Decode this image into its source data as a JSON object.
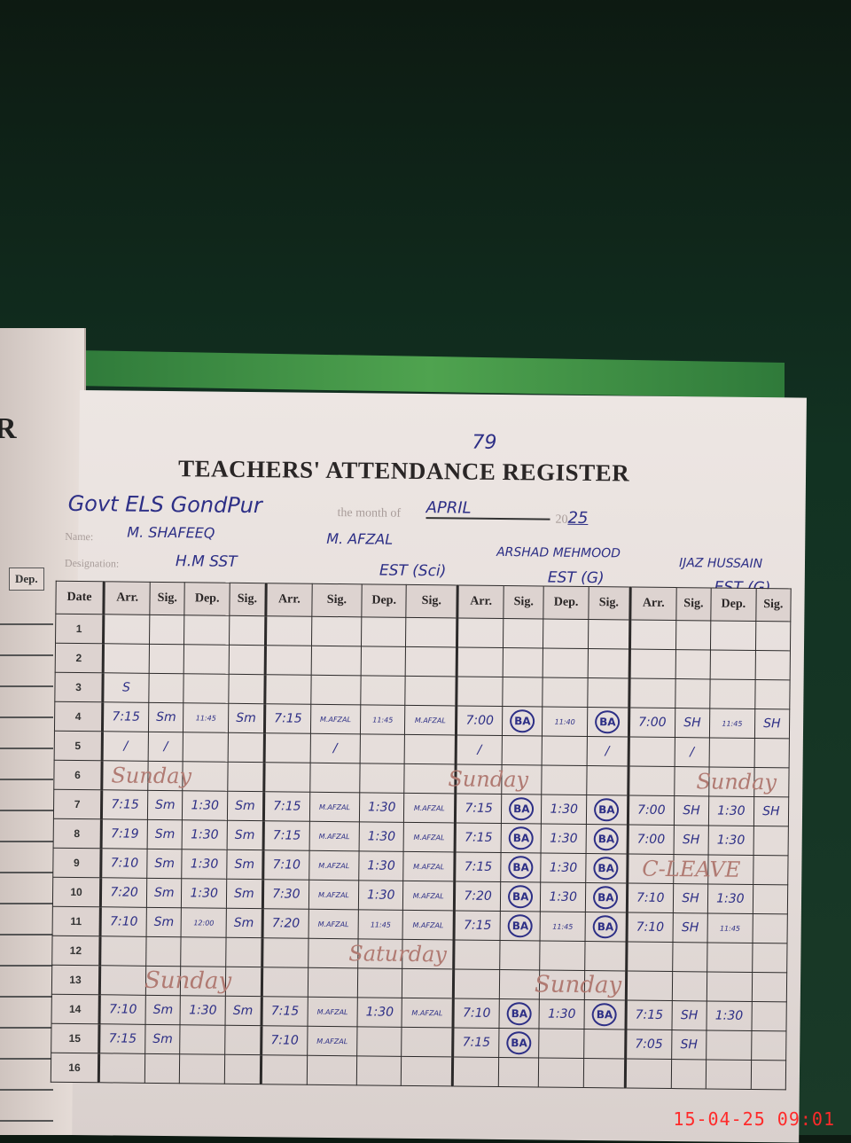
{
  "page_number": "79",
  "title": "TEACHERS' ATTENDANCE REGISTER",
  "school": "Govt ELS GondPur",
  "month_label": "the month of",
  "month": "APRIL",
  "year_prefix": "20",
  "year_suffix": "25",
  "name_label": "Name:",
  "designation_label": "Designation:",
  "left_page": {
    "letter": "R",
    "col": "Dep."
  },
  "teachers": [
    {
      "name": "M. Shafeeq",
      "designation": "H.M SST"
    },
    {
      "name": "M. Afzal",
      "designation": "EST (Sci)"
    },
    {
      "name": "Arshad Mehmood",
      "designation": "EST (G)"
    },
    {
      "name": "Ijaz Hussain",
      "designation": "EST (G)"
    }
  ],
  "columns": {
    "date": "Date",
    "sub": [
      "Arr.",
      "Sig.",
      "Dep.",
      "Sig."
    ]
  },
  "rows": [
    {
      "date": "1",
      "cells": [
        "",
        "",
        "",
        "",
        "",
        "",
        "",
        "",
        "",
        "",
        "",
        "",
        "",
        "",
        "",
        ""
      ]
    },
    {
      "date": "2",
      "cells": [
        "",
        "",
        "",
        "",
        "",
        "",
        "",
        "",
        "",
        "",
        "",
        "",
        "",
        "",
        "",
        ""
      ]
    },
    {
      "date": "3",
      "cells": [
        "S",
        "",
        "",
        "",
        "",
        "",
        "",
        "",
        "",
        "",
        "",
        "",
        "",
        "",
        "",
        ""
      ]
    },
    {
      "date": "4",
      "cells": [
        "7:15",
        "Sm",
        "11:45",
        "Sm",
        "7:15",
        "M.AFZAL",
        "11:45",
        "M.AFZAL",
        "7:00",
        "BA",
        "11:40",
        "BA",
        "7:00",
        "SH",
        "11:45",
        "SH"
      ]
    },
    {
      "date": "5",
      "cells": [
        "/",
        "/",
        "",
        "",
        "",
        "/",
        "",
        "",
        "/",
        "",
        "",
        "/",
        "",
        "/",
        "",
        ""
      ]
    },
    {
      "date": "6",
      "cells": [
        "",
        "",
        "",
        "",
        "",
        "",
        "",
        "",
        "",
        "",
        "",
        "",
        "",
        "",
        "",
        ""
      ]
    },
    {
      "date": "7",
      "cells": [
        "7:15",
        "Sm",
        "1:30",
        "Sm",
        "7:15",
        "M.AFZAL",
        "1:30",
        "M.AFZAL",
        "7:15",
        "BA",
        "1:30",
        "BA",
        "7:00",
        "SH",
        "1:30",
        "SH"
      ]
    },
    {
      "date": "8",
      "cells": [
        "7:19",
        "Sm",
        "1:30",
        "Sm",
        "7:15",
        "M.AFZAL",
        "1:30",
        "M.AFZAL",
        "7:15",
        "BA",
        "1:30",
        "BA",
        "7:00",
        "SH",
        "1:30",
        ""
      ]
    },
    {
      "date": "9",
      "cells": [
        "7:10",
        "Sm",
        "1:30",
        "Sm",
        "7:10",
        "M.AFZAL",
        "1:30",
        "M.AFZAL",
        "7:15",
        "BA",
        "1:30",
        "BA",
        "",
        "",
        "",
        ""
      ]
    },
    {
      "date": "10",
      "cells": [
        "7:20",
        "Sm",
        "1:30",
        "Sm",
        "7:30",
        "M.AFZAL",
        "1:30",
        "M.AFZAL",
        "7:20",
        "BA",
        "1:30",
        "BA",
        "7:10",
        "SH",
        "1:30",
        ""
      ]
    },
    {
      "date": "11",
      "cells": [
        "7:10",
        "Sm",
        "12:00",
        "Sm",
        "7:20",
        "M.AFZAL",
        "11:45",
        "M.AFZAL",
        "7:15",
        "BA",
        "11:45",
        "BA",
        "7:10",
        "SH",
        "11:45",
        ""
      ]
    },
    {
      "date": "12",
      "cells": [
        "",
        "",
        "",
        "",
        "",
        "",
        "",
        "",
        "",
        "",
        "",
        "",
        "",
        "",
        "",
        ""
      ]
    },
    {
      "date": "13",
      "cells": [
        "",
        "",
        "",
        "",
        "",
        "",
        "",
        "",
        "",
        "",
        "",
        "",
        "",
        "",
        "",
        ""
      ]
    },
    {
      "date": "14",
      "cells": [
        "7:10",
        "Sm",
        "1:30",
        "Sm",
        "7:15",
        "M.AFZAL",
        "1:30",
        "M.AFZAL",
        "7:10",
        "BA",
        "1:30",
        "BA",
        "7:15",
        "SH",
        "1:30",
        ""
      ]
    },
    {
      "date": "15",
      "cells": [
        "7:15",
        "Sm",
        "",
        "",
        "7:10",
        "M.AFZAL",
        "",
        "",
        "7:15",
        "BA",
        "",
        "",
        "7:05",
        "SH",
        "",
        ""
      ]
    },
    {
      "date": "16",
      "cells": [
        "",
        "",
        "",
        "",
        "",
        "",
        "",
        "",
        "",
        "",
        "",
        "",
        "",
        "",
        "",
        ""
      ]
    }
  ],
  "annotations": {
    "row6": "Sunday",
    "row9_t4": "C-LEAVE",
    "row12": "Saturday",
    "row13": "Sunday"
  },
  "timestamp": "15-04-25  09:01",
  "colors": {
    "ink": "#2d2f86",
    "red_ink": "#b07a72",
    "stamp": "#ff2a2a",
    "background": "#123222"
  }
}
